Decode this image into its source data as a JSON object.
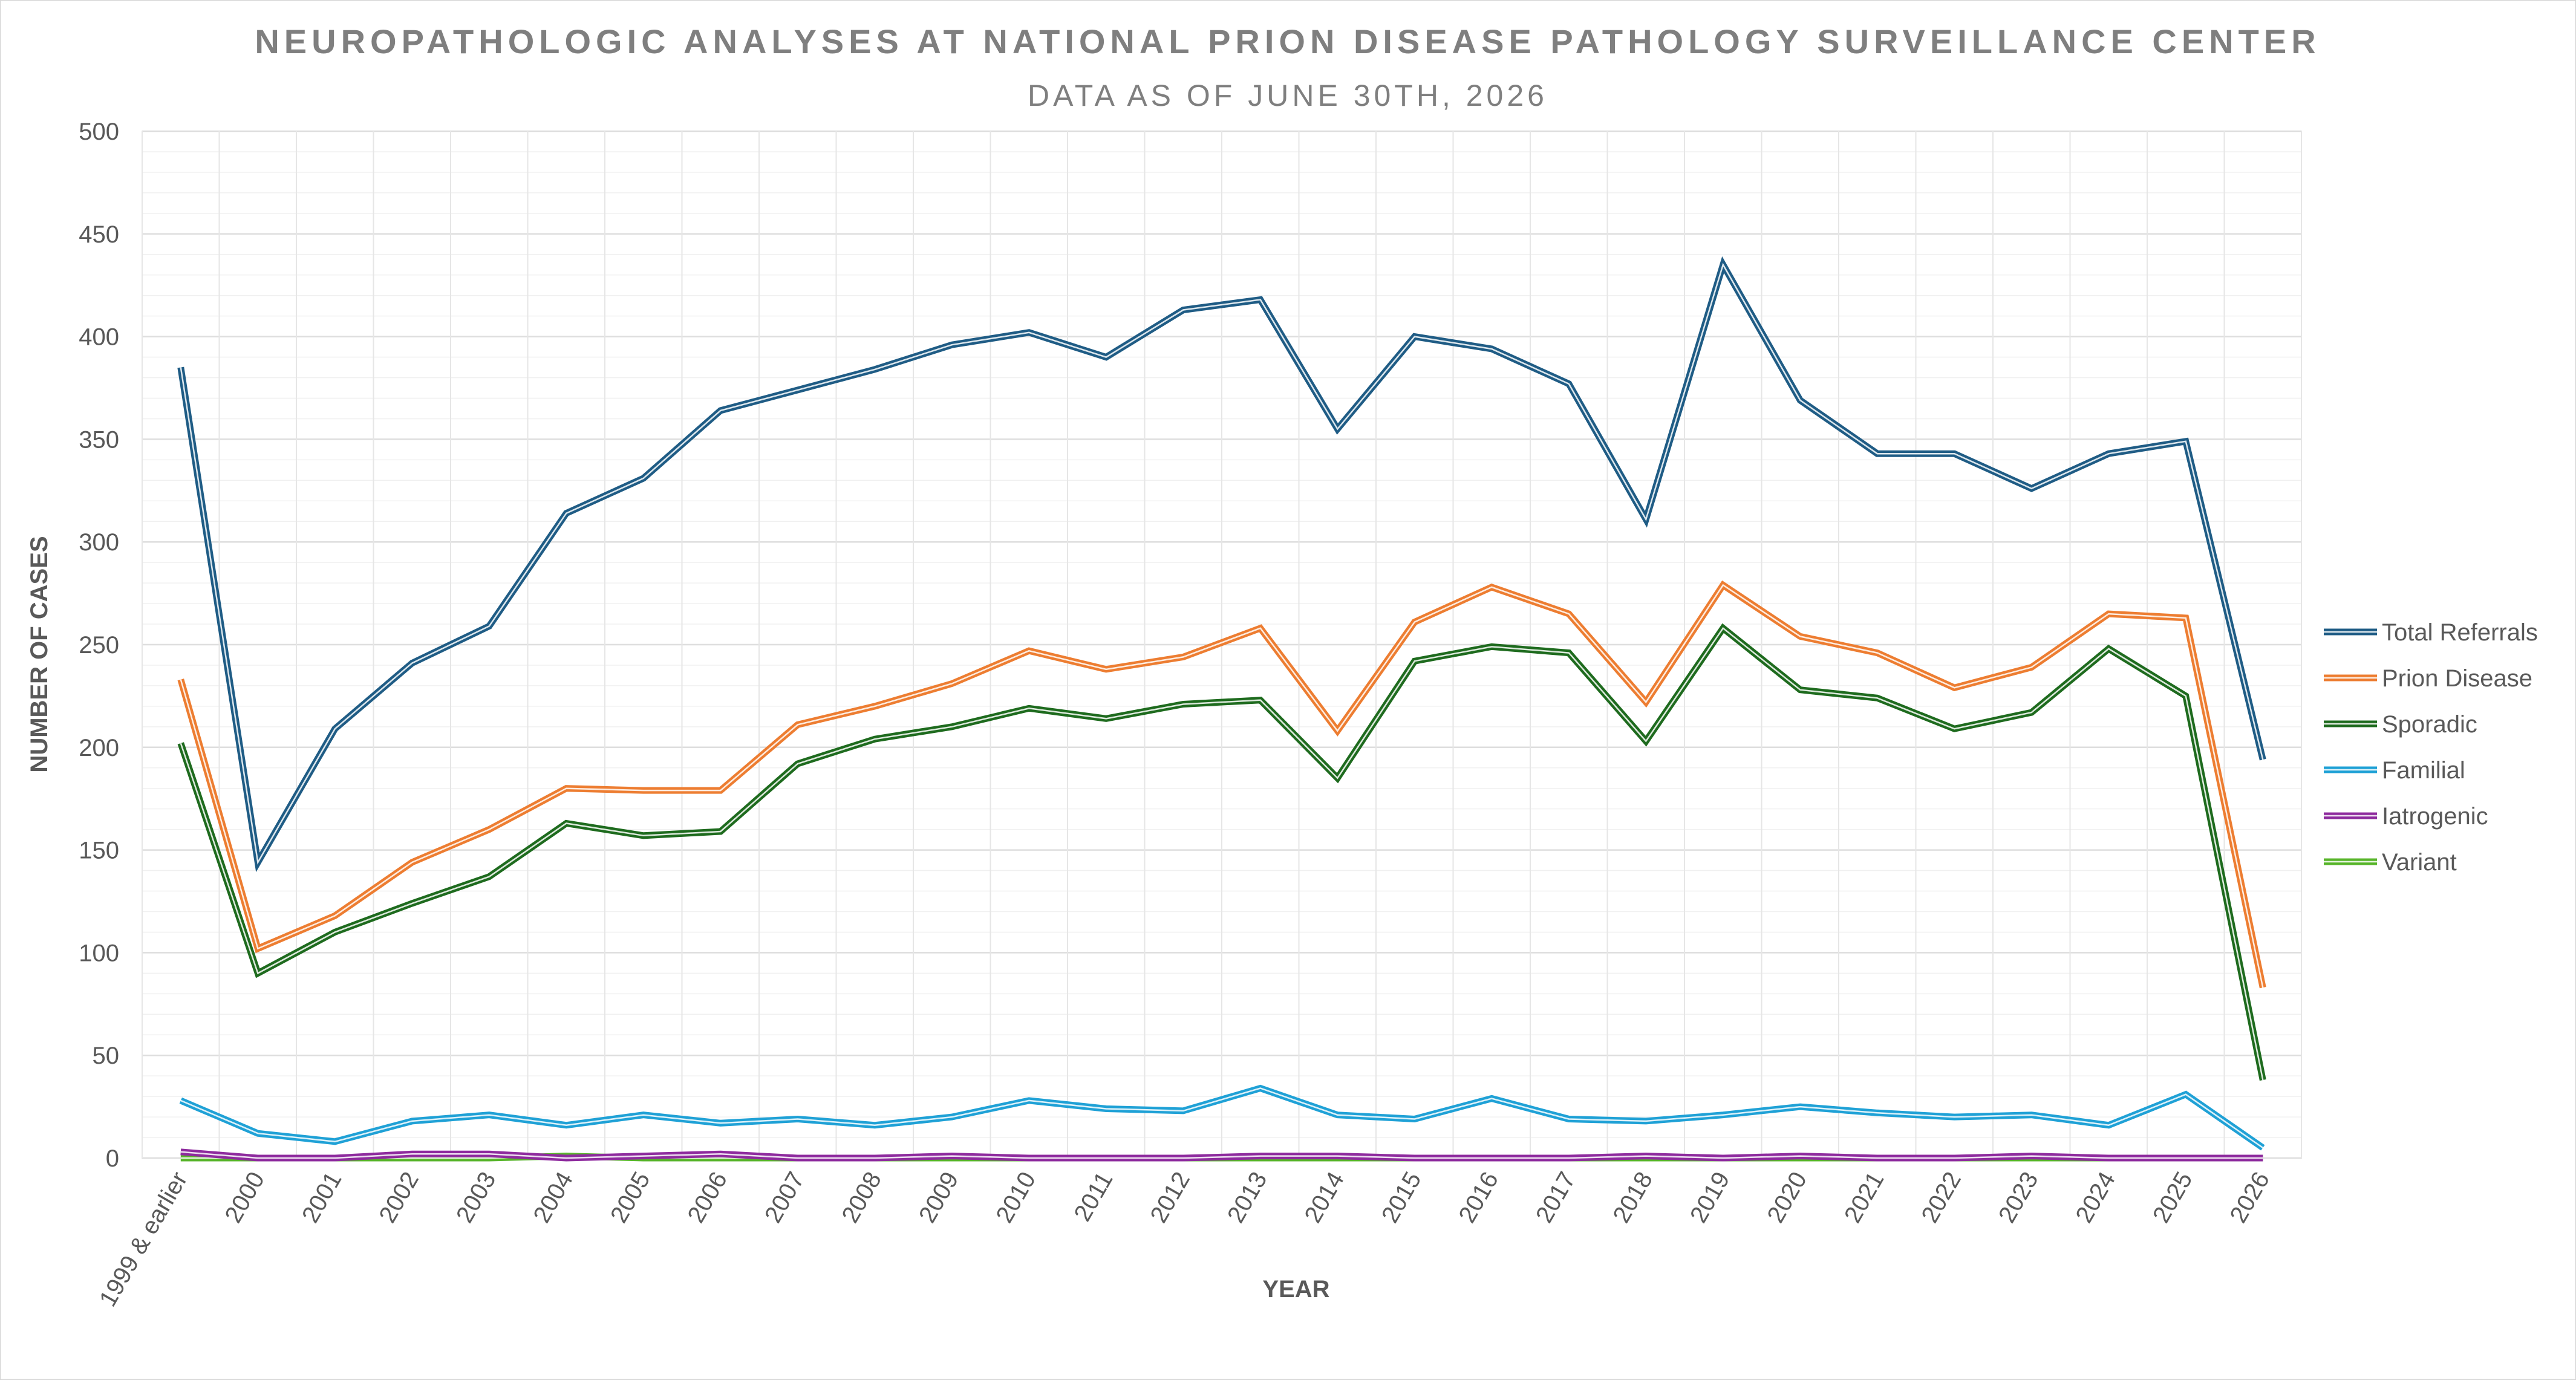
{
  "chart_data": {
    "type": "line",
    "title": "NEUROPATHOLOGIC ANALYSES AT NATIONAL PRION DISEASE PATHOLOGY SURVEILLANCE CENTER",
    "subtitle": "DATA AS OF JUNE 30TH, 2026",
    "xlabel": "YEAR",
    "ylabel": "NUMBER OF CASES",
    "ylim": [
      0,
      500
    ],
    "yticks": [
      0,
      50,
      100,
      150,
      200,
      250,
      300,
      350,
      400,
      450,
      500
    ],
    "grid": true,
    "legend_position": "right",
    "categories": [
      "1999 & earlier",
      "2000",
      "2001",
      "2002",
      "2003",
      "2004",
      "2005",
      "2006",
      "2007",
      "2008",
      "2009",
      "2010",
      "2011",
      "2012",
      "2013",
      "2014",
      "2015",
      "2016",
      "2017",
      "2018",
      "2019",
      "2020",
      "2021",
      "2022",
      "2023",
      "2024",
      "2025",
      "2026"
    ],
    "series": [
      {
        "name": "Total Referrals",
        "color": "#1f5c85",
        "values": [
          385,
          144,
          209,
          241,
          259,
          314,
          331,
          364,
          374,
          384,
          396,
          402,
          390,
          413,
          418,
          355,
          400,
          394,
          377,
          311,
          435,
          369,
          343,
          343,
          326,
          343,
          349,
          194
        ]
      },
      {
        "name": "Prion Disease",
        "color": "#ed7d31",
        "values": [
          233,
          102,
          118,
          144,
          160,
          180,
          179,
          179,
          211,
          220,
          231,
          247,
          238,
          244,
          258,
          208,
          261,
          278,
          265,
          222,
          279,
          254,
          246,
          229,
          239,
          265,
          263,
          83
        ]
      },
      {
        "name": "Sporadic",
        "color": "#1e6b1e",
        "values": [
          202,
          90,
          110,
          124,
          137,
          163,
          157,
          159,
          192,
          204,
          210,
          219,
          214,
          221,
          223,
          185,
          242,
          249,
          246,
          203,
          258,
          228,
          224,
          209,
          217,
          248,
          225,
          38
        ]
      },
      {
        "name": "Familial",
        "color": "#1fa1d6",
        "values": [
          28,
          12,
          8,
          18,
          21,
          16,
          21,
          17,
          19,
          16,
          20,
          28,
          24,
          23,
          34,
          21,
          19,
          29,
          19,
          18,
          21,
          25,
          22,
          20,
          21,
          16,
          31,
          5
        ]
      },
      {
        "name": "Iatrogenic",
        "color": "#8e2b9e",
        "values": [
          3,
          0,
          0,
          2,
          2,
          0,
          1,
          2,
          0,
          0,
          1,
          0,
          0,
          0,
          1,
          1,
          0,
          0,
          0,
          1,
          0,
          1,
          0,
          0,
          1,
          0,
          0,
          0
        ]
      },
      {
        "name": "Variant",
        "color": "#58b52b",
        "values": [
          0,
          0,
          0,
          0,
          0,
          1,
          0,
          0,
          0,
          0,
          0,
          0,
          0,
          0,
          0,
          0,
          0,
          0,
          0,
          0,
          0,
          0,
          0,
          0,
          0,
          0,
          0,
          0
        ]
      }
    ]
  }
}
